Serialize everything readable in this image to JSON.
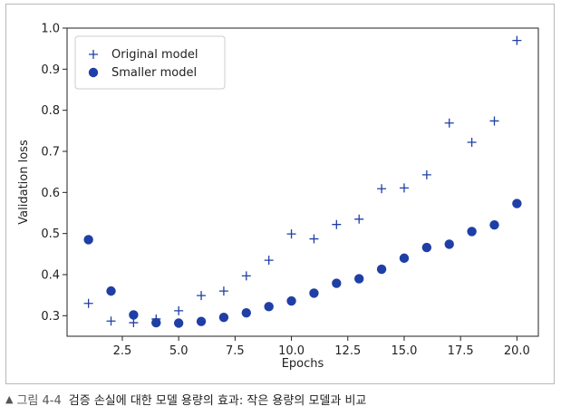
{
  "caption": {
    "marker": "▲",
    "label": "그림 4-4",
    "text": "검증 손실에 대한 모델 용량의 효과: 작은 용량의 모델과 비교"
  },
  "chart_data": {
    "type": "scatter",
    "xlabel": "Epochs",
    "ylabel": "Validation loss",
    "xlim": [
      0.05,
      20.95
    ],
    "ylim": [
      0.25,
      1.0
    ],
    "x_ticks": [
      "2.5",
      "5.0",
      "7.5",
      "10.0",
      "12.5",
      "15.0",
      "17.5",
      "20.0"
    ],
    "y_ticks": [
      "0.3",
      "0.4",
      "0.5",
      "0.6",
      "0.7",
      "0.8",
      "0.9",
      "1.0"
    ],
    "grid": false,
    "legend_position": "top-left",
    "color": "#1f3fa6",
    "series": [
      {
        "name": "Original model",
        "marker": "plus",
        "x": [
          1,
          2,
          3,
          4,
          5,
          6,
          7,
          8,
          9,
          10,
          11,
          12,
          13,
          14,
          15,
          16,
          17,
          18,
          19,
          20
        ],
        "y": [
          0.33,
          0.287,
          0.283,
          0.292,
          0.312,
          0.349,
          0.36,
          0.397,
          0.435,
          0.499,
          0.487,
          0.522,
          0.535,
          0.609,
          0.611,
          0.643,
          0.769,
          0.722,
          0.774,
          0.97
        ]
      },
      {
        "name": "Smaller model",
        "marker": "circle",
        "x": [
          1,
          2,
          3,
          4,
          5,
          6,
          7,
          8,
          9,
          10,
          11,
          12,
          13,
          14,
          15,
          16,
          17,
          18,
          19,
          20
        ],
        "y": [
          0.485,
          0.36,
          0.302,
          0.283,
          0.282,
          0.286,
          0.296,
          0.307,
          0.322,
          0.336,
          0.355,
          0.379,
          0.39,
          0.413,
          0.44,
          0.466,
          0.474,
          0.505,
          0.521,
          0.573
        ]
      }
    ]
  }
}
